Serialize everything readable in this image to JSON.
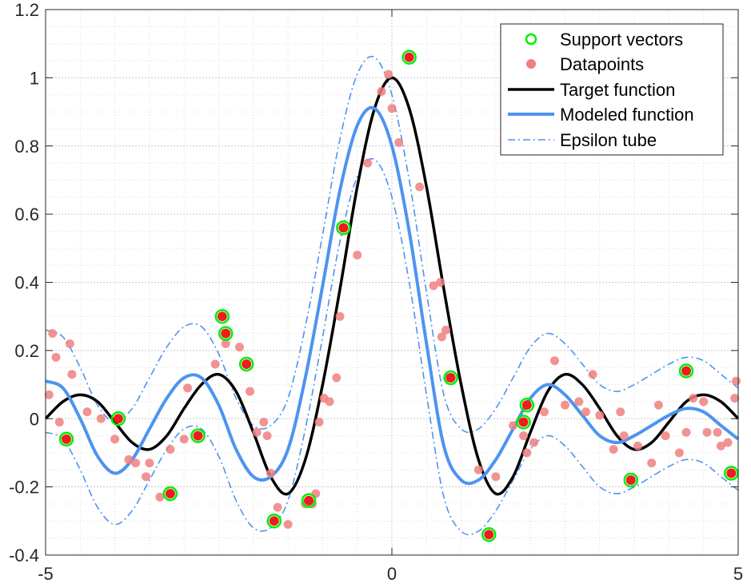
{
  "chart_data": {
    "type": "scatter",
    "title": "",
    "xlabel": "",
    "ylabel": "",
    "xlim": [
      -5,
      5
    ],
    "ylim": [
      -0.4,
      1.2
    ],
    "xticks": [
      -5,
      0,
      5
    ],
    "xtick_labels": [
      "-5",
      "0",
      "5"
    ],
    "yticks": [
      -0.4,
      -0.2,
      0,
      0.2,
      0.4,
      0.6,
      0.8,
      1.0,
      1.2
    ],
    "ytick_labels": [
      "-0.4",
      "-0.2",
      "0",
      "0.2",
      "0.4",
      "0.6",
      "0.8",
      "1",
      "1.2"
    ],
    "grid": true,
    "minor_grid": true,
    "legend_position": "top-right",
    "legend": [
      {
        "label": "Support vectors",
        "style": "circle-open",
        "color": "#00ee00"
      },
      {
        "label": "Datapoints",
        "style": "circle-filled",
        "color": "#f08080"
      },
      {
        "label": "Target function",
        "style": "solid",
        "color": "#000000"
      },
      {
        "label": "Modeled function",
        "style": "solid",
        "color": "#4d94f0"
      },
      {
        "label": "Epsilon tube",
        "style": "dashdot",
        "color": "#4d94f0"
      }
    ],
    "colors": {
      "support_ring": "#00ee00",
      "support_fill": "#ee1c1c",
      "datapoint": "#f08080",
      "target": "#000000",
      "model": "#4d94f0",
      "grid": "#dddddd",
      "axes": "#262626"
    },
    "series": [
      {
        "name": "Target function",
        "x": [
          -5,
          -4.75,
          -4.5,
          -4.25,
          -4,
          -3.75,
          -3.5,
          -3.25,
          -3,
          -2.75,
          -2.5,
          -2.25,
          -2,
          -1.75,
          -1.5,
          -1.25,
          -1,
          -0.75,
          -0.5,
          -0.25,
          0,
          0.25,
          0.5,
          0.75,
          1,
          1.25,
          1.5,
          1.75,
          2,
          2.25,
          2.5,
          2.75,
          3,
          3.25,
          3.5,
          3.75,
          4,
          4.25,
          4.5,
          4.75,
          5
        ],
        "y": [
          0.0,
          0.05,
          0.07,
          0.05,
          -0.01,
          -0.07,
          -0.09,
          -0.05,
          0.03,
          0.1,
          0.13,
          0.08,
          -0.04,
          -0.17,
          -0.22,
          -0.12,
          0.1,
          0.38,
          0.68,
          0.91,
          1.0,
          0.91,
          0.68,
          0.38,
          0.1,
          -0.12,
          -0.22,
          -0.17,
          -0.04,
          0.08,
          0.13,
          0.1,
          0.03,
          -0.05,
          -0.09,
          -0.07,
          -0.01,
          0.05,
          0.07,
          0.05,
          0.0
        ]
      },
      {
        "name": "Modeled function",
        "x": [
          -5,
          -4.75,
          -4.5,
          -4.25,
          -4,
          -3.75,
          -3.5,
          -3.25,
          -3,
          -2.75,
          -2.5,
          -2.25,
          -2,
          -1.75,
          -1.5,
          -1.25,
          -1,
          -0.75,
          -0.5,
          -0.25,
          0,
          0.25,
          0.5,
          0.75,
          1,
          1.25,
          1.5,
          1.75,
          2,
          2.25,
          2.5,
          2.75,
          3,
          3.25,
          3.5,
          3.75,
          4,
          4.25,
          4.5,
          4.75,
          5
        ],
        "y": [
          0.11,
          0.09,
          0.0,
          -0.11,
          -0.16,
          -0.12,
          -0.03,
          0.06,
          0.12,
          0.12,
          0.04,
          -0.09,
          -0.17,
          -0.17,
          -0.09,
          0.12,
          0.39,
          0.67,
          0.86,
          0.91,
          0.8,
          0.55,
          0.22,
          -0.08,
          -0.18,
          -0.18,
          -0.12,
          -0.03,
          0.06,
          0.1,
          0.07,
          0.01,
          -0.05,
          -0.07,
          -0.05,
          -0.02,
          0.01,
          0.03,
          0.02,
          -0.02,
          -0.06
        ]
      },
      {
        "name": "Epsilon tube",
        "x": [
          -5,
          -4.75,
          -4.5,
          -4.25,
          -4,
          -3.75,
          -3.5,
          -3.25,
          -3,
          -2.75,
          -2.5,
          -2.25,
          -2,
          -1.75,
          -1.5,
          -1.25,
          -1,
          -0.75,
          -0.5,
          -0.25,
          0,
          0.25,
          0.5,
          0.75,
          1,
          1.25,
          1.5,
          1.75,
          2,
          2.25,
          2.5,
          2.75,
          3,
          3.25,
          3.5,
          3.75,
          4,
          4.25,
          4.5,
          4.75,
          5
        ],
        "upper": [
          0.26,
          0.24,
          0.15,
          0.04,
          -0.01,
          0.03,
          0.12,
          0.21,
          0.27,
          0.27,
          0.19,
          0.06,
          -0.02,
          -0.02,
          0.06,
          0.27,
          0.54,
          0.82,
          1.01,
          1.06,
          0.95,
          0.7,
          0.37,
          0.07,
          -0.03,
          -0.03,
          0.03,
          0.12,
          0.21,
          0.25,
          0.22,
          0.16,
          0.1,
          0.08,
          0.1,
          0.13,
          0.16,
          0.18,
          0.17,
          0.13,
          0.09
        ],
        "lower": [
          -0.04,
          -0.06,
          -0.15,
          -0.26,
          -0.31,
          -0.27,
          -0.18,
          -0.09,
          -0.03,
          -0.03,
          -0.11,
          -0.24,
          -0.32,
          -0.32,
          -0.24,
          -0.03,
          0.24,
          0.52,
          0.71,
          0.76,
          0.65,
          0.4,
          0.07,
          -0.23,
          -0.33,
          -0.33,
          -0.27,
          -0.18,
          -0.09,
          -0.05,
          -0.08,
          -0.14,
          -0.2,
          -0.22,
          -0.2,
          -0.17,
          -0.14,
          -0.12,
          -0.13,
          -0.17,
          -0.21
        ]
      },
      {
        "name": "Datapoints",
        "points": [
          [
            -4.95,
            0.07
          ],
          [
            -4.9,
            0.25
          ],
          [
            -4.85,
            0.18
          ],
          [
            -4.8,
            -0.01
          ],
          [
            -4.65,
            0.22
          ],
          [
            -4.62,
            0.13
          ],
          [
            -4.4,
            0.02
          ],
          [
            -4.2,
            0.0
          ],
          [
            -4.0,
            -0.06
          ],
          [
            -3.8,
            -0.12
          ],
          [
            -3.7,
            -0.13
          ],
          [
            -3.55,
            -0.17
          ],
          [
            -3.5,
            -0.13
          ],
          [
            -3.35,
            -0.23
          ],
          [
            -3.2,
            -0.09
          ],
          [
            -3.0,
            -0.06
          ],
          [
            -2.95,
            0.09
          ],
          [
            -2.55,
            0.16
          ],
          [
            -2.4,
            0.22
          ],
          [
            -2.2,
            0.21
          ],
          [
            -2.05,
            0.08
          ],
          [
            -1.95,
            -0.04
          ],
          [
            -1.85,
            -0.01
          ],
          [
            -1.8,
            -0.05
          ],
          [
            -1.75,
            -0.16
          ],
          [
            -1.65,
            -0.26
          ],
          [
            -1.5,
            -0.31
          ],
          [
            -1.25,
            -0.25
          ],
          [
            -1.15,
            -0.25
          ],
          [
            -1.1,
            -0.22
          ],
          [
            -1.05,
            -0.01
          ],
          [
            -0.98,
            0.06
          ],
          [
            -0.9,
            0.05
          ],
          [
            -0.8,
            0.12
          ],
          [
            -0.75,
            0.3
          ],
          [
            -0.5,
            0.48
          ],
          [
            -0.35,
            0.75
          ],
          [
            -0.15,
            0.96
          ],
          [
            -0.05,
            1.01
          ],
          [
            0.0,
            0.91
          ],
          [
            0.1,
            0.81
          ],
          [
            0.4,
            0.68
          ],
          [
            0.6,
            0.39
          ],
          [
            0.7,
            0.4
          ],
          [
            0.72,
            0.24
          ],
          [
            0.78,
            0.26
          ],
          [
            0.82,
            0.12
          ],
          [
            1.25,
            -0.15
          ],
          [
            1.5,
            -0.17
          ],
          [
            1.75,
            -0.02
          ],
          [
            1.9,
            -0.05
          ],
          [
            1.95,
            -0.1
          ],
          [
            2.05,
            -0.07
          ],
          [
            2.2,
            0.02
          ],
          [
            2.35,
            0.17
          ],
          [
            2.5,
            0.04
          ],
          [
            2.7,
            0.05
          ],
          [
            2.8,
            0.02
          ],
          [
            2.9,
            0.13
          ],
          [
            3.0,
            0.01
          ],
          [
            3.2,
            -0.09
          ],
          [
            3.3,
            0.02
          ],
          [
            3.35,
            -0.05
          ],
          [
            3.55,
            -0.08
          ],
          [
            3.75,
            -0.13
          ],
          [
            3.85,
            0.04
          ],
          [
            3.95,
            -0.05
          ],
          [
            4.15,
            -0.1
          ],
          [
            4.25,
            -0.04
          ],
          [
            4.35,
            0.06
          ],
          [
            4.5,
            0.05
          ],
          [
            4.55,
            -0.04
          ],
          [
            4.7,
            -0.04
          ],
          [
            4.75,
            -0.08
          ],
          [
            4.85,
            -0.07
          ],
          [
            4.95,
            0.06
          ],
          [
            4.97,
            0.11
          ]
        ]
      },
      {
        "name": "Support vectors",
        "points": [
          [
            -4.7,
            -0.06
          ],
          [
            -3.95,
            0.0
          ],
          [
            -3.2,
            -0.22
          ],
          [
            -2.8,
            -0.05
          ],
          [
            -2.45,
            0.3
          ],
          [
            -2.4,
            0.25
          ],
          [
            -2.1,
            0.16
          ],
          [
            -1.7,
            -0.3
          ],
          [
            -1.2,
            -0.24
          ],
          [
            -0.7,
            0.56
          ],
          [
            0.25,
            1.06
          ],
          [
            0.85,
            0.12
          ],
          [
            1.4,
            -0.34
          ],
          [
            1.9,
            -0.01
          ],
          [
            1.95,
            0.04
          ],
          [
            3.45,
            -0.18
          ],
          [
            4.25,
            0.14
          ],
          [
            4.9,
            -0.16
          ]
        ]
      }
    ]
  }
}
